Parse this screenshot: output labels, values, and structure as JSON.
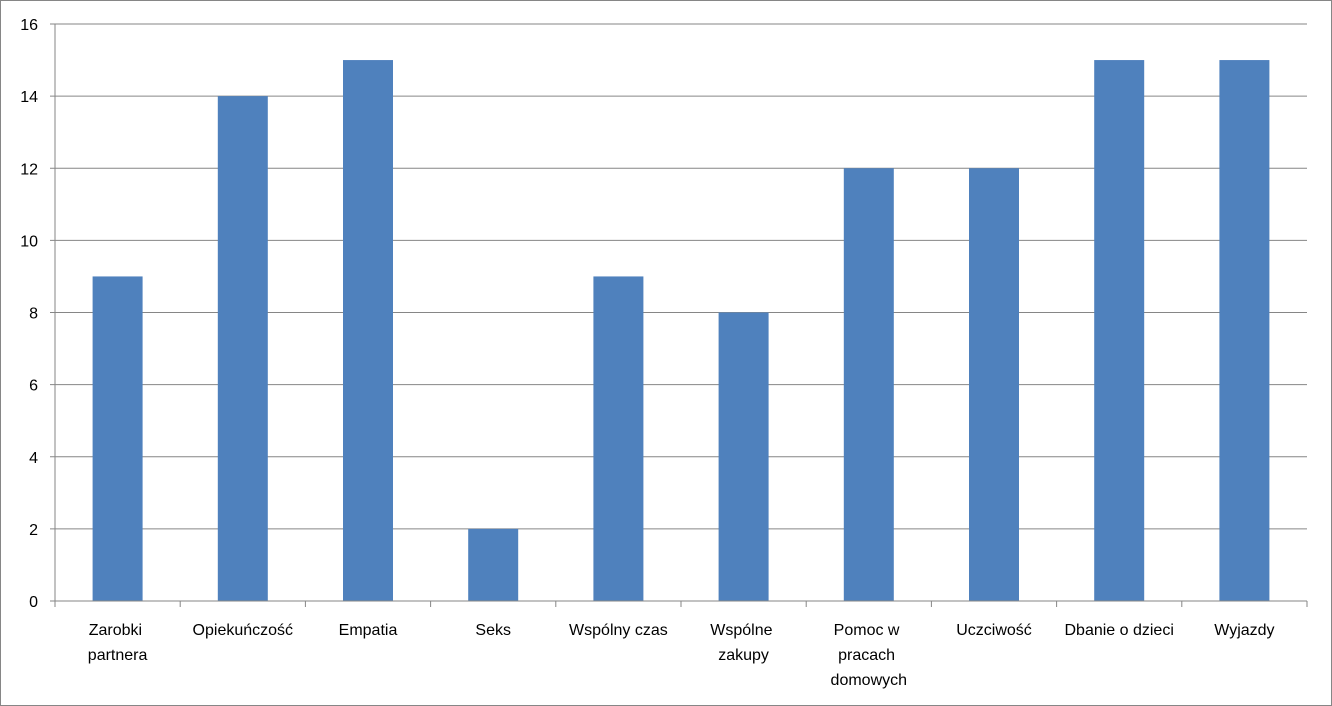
{
  "chart_data": {
    "type": "bar",
    "categories": [
      "Zarobki partnera",
      "Opiekuńczość",
      "Empatia",
      "Seks",
      "Wspólny czas",
      "Wspólne zakupy",
      "Pomoc w pracach domowych",
      "Uczciwość",
      "Dbanie o dzieci",
      "Wyjazdy"
    ],
    "values": [
      9,
      14,
      15,
      2,
      9,
      8,
      12,
      12,
      15,
      15
    ],
    "color": "#4f81bd",
    "ylim": [
      0,
      16
    ],
    "yticks": [
      0,
      2,
      4,
      6,
      8,
      10,
      12,
      14,
      16
    ],
    "grid": true
  }
}
